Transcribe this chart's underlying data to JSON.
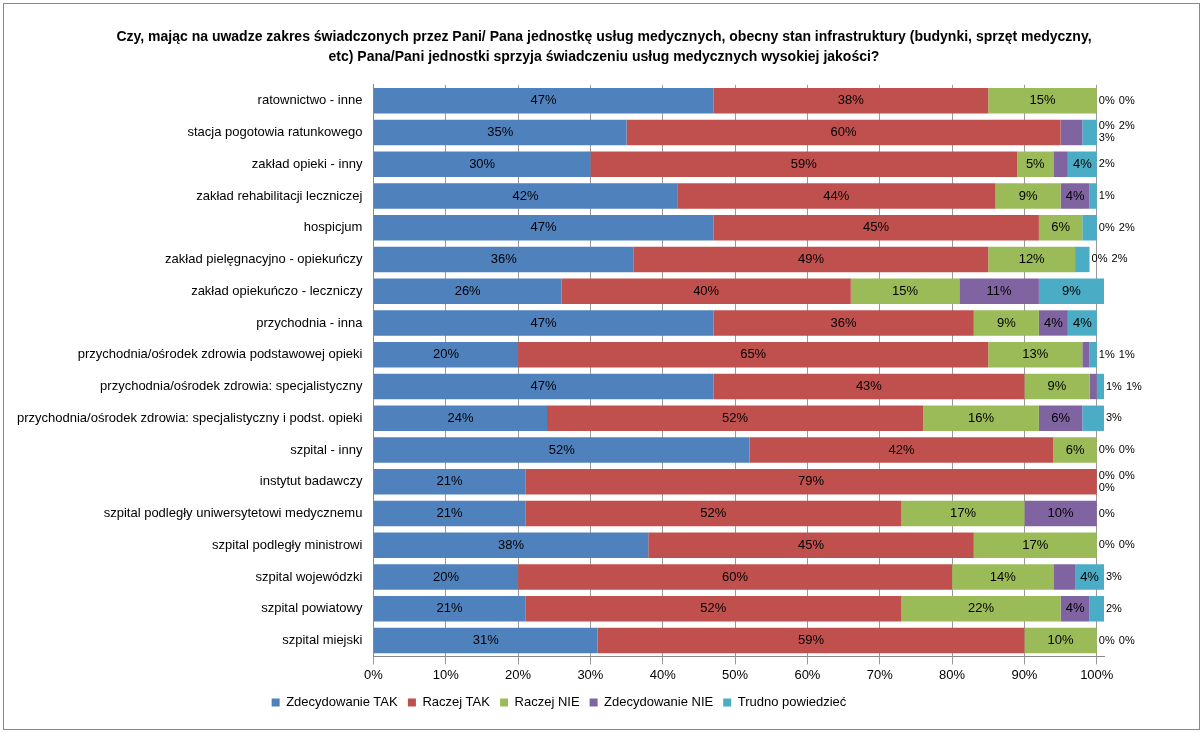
{
  "chart_data": {
    "type": "bar",
    "orientation": "horizontal",
    "stacked": true,
    "title": "Czy, mając na uwadze zakres świadczonych przez Pani/ Pana jednostkę usług medycznych, obecny stan infrastruktury (budynki, sprzęt medyczny, etc) Pana/Pani jednostki sprzyja świadczeniu usług medycznych wysokiej jakości?",
    "categories": [
      "ratownictwo - inne",
      "stacja pogotowia ratunkowego",
      "zakład opieki - inny",
      "zakład rehabilitacji leczniczej",
      "hospicjum",
      "zakład pielęgnacyjno - opiekuńczy",
      "zakład opiekuńczo - leczniczy",
      "przychodnia - inna",
      "przychodnia/ośrodek zdrowia podstawowej opieki",
      "przychodnia/ośrodek zdrowia: specjalistyczny",
      "przychodnia/ośrodek zdrowia: specjalistyczny i podst. opieki",
      "szpital - inny",
      "instytut badawczy",
      "szpital podległy uniwersytetowi medycznemu",
      "szpital podległy ministrowi",
      "szpital wojewódzki",
      "szpital powiatowy",
      "szpital miejski"
    ],
    "series": [
      {
        "name": "Zdecydowanie TAK",
        "color": "#4f81bd",
        "values": [
          47,
          35,
          30,
          42,
          47,
          36,
          26,
          47,
          20,
          47,
          24,
          52,
          21,
          21,
          38,
          20,
          21,
          31
        ],
        "value_labels": [
          "47%",
          "35%",
          "30%",
          "42%",
          "47%",
          "36%",
          "26%",
          "47%",
          "20%",
          "47%",
          "24%",
          "52%",
          "21%",
          "21%",
          "38%",
          "20%",
          "21%",
          "31%"
        ]
      },
      {
        "name": "Raczej TAK",
        "color": "#c0504d",
        "values": [
          38,
          60,
          59,
          44,
          45,
          49,
          40,
          36,
          65,
          43,
          52,
          42,
          79,
          52,
          45,
          60,
          52,
          59
        ],
        "value_labels": [
          "38%",
          "60%",
          "59%",
          "44%",
          "45%",
          "49%",
          "40%",
          "36%",
          "65%",
          "43%",
          "52%",
          "42%",
          "79%",
          "52%",
          "45%",
          "60%",
          "52%",
          "59%"
        ]
      },
      {
        "name": "Raczej NIE",
        "color": "#9bbb59",
        "values": [
          15,
          0,
          5,
          9,
          6,
          12,
          15,
          9,
          13,
          9,
          16,
          6,
          0,
          17,
          17,
          14,
          22,
          10
        ],
        "value_labels": [
          "15%",
          "0%",
          "5%",
          "9%",
          "6%",
          "12%",
          "15%",
          "9%",
          "13%",
          "9%",
          "16%",
          "6%",
          "0%",
          "17%",
          "17%",
          "14%",
          "22%",
          "10%"
        ]
      },
      {
        "name": "Zdecydowanie NIE",
        "color": "#8064a2",
        "values": [
          0,
          3,
          2,
          4,
          0,
          0,
          11,
          4,
          1,
          1,
          6,
          0,
          0,
          10,
          0,
          3,
          4,
          0
        ],
        "value_labels": [
          "0%",
          "3%",
          "2%",
          "4%",
          "0%",
          "0%",
          "11%",
          "4%",
          "1%",
          "1%",
          "6%",
          "0%",
          "0%",
          "10%",
          "0%",
          "3%",
          "4%",
          "0%"
        ]
      },
      {
        "name": "Trudno powiedzieć",
        "color": "#4bacc6",
        "values": [
          0,
          2,
          4,
          1,
          2,
          2,
          9,
          4,
          1,
          1,
          3,
          0,
          0,
          0,
          0,
          4,
          2,
          0
        ],
        "value_labels": [
          "0%",
          "2%",
          "4%",
          "1%",
          "2%",
          "2%",
          "9%",
          "4%",
          "1%",
          "1%",
          "3%",
          "0%",
          "0%",
          "0%",
          "0%",
          "4%",
          "2%",
          "0%"
        ]
      }
    ],
    "xlim": [
      0,
      101
    ],
    "xticks": [
      {
        "value": 0,
        "label": "0%"
      },
      {
        "value": 10,
        "label": "10%"
      },
      {
        "value": 20,
        "label": "20%"
      },
      {
        "value": 30,
        "label": "30%"
      },
      {
        "value": 40,
        "label": "40%"
      },
      {
        "value": 50,
        "label": "50%"
      },
      {
        "value": 60,
        "label": "60%"
      },
      {
        "value": 70,
        "label": "70%"
      },
      {
        "value": 80,
        "label": "80%"
      },
      {
        "value": 90,
        "label": "90%"
      },
      {
        "value": 100,
        "label": "100%"
      }
    ],
    "grid": "x",
    "legend": "bottom"
  }
}
